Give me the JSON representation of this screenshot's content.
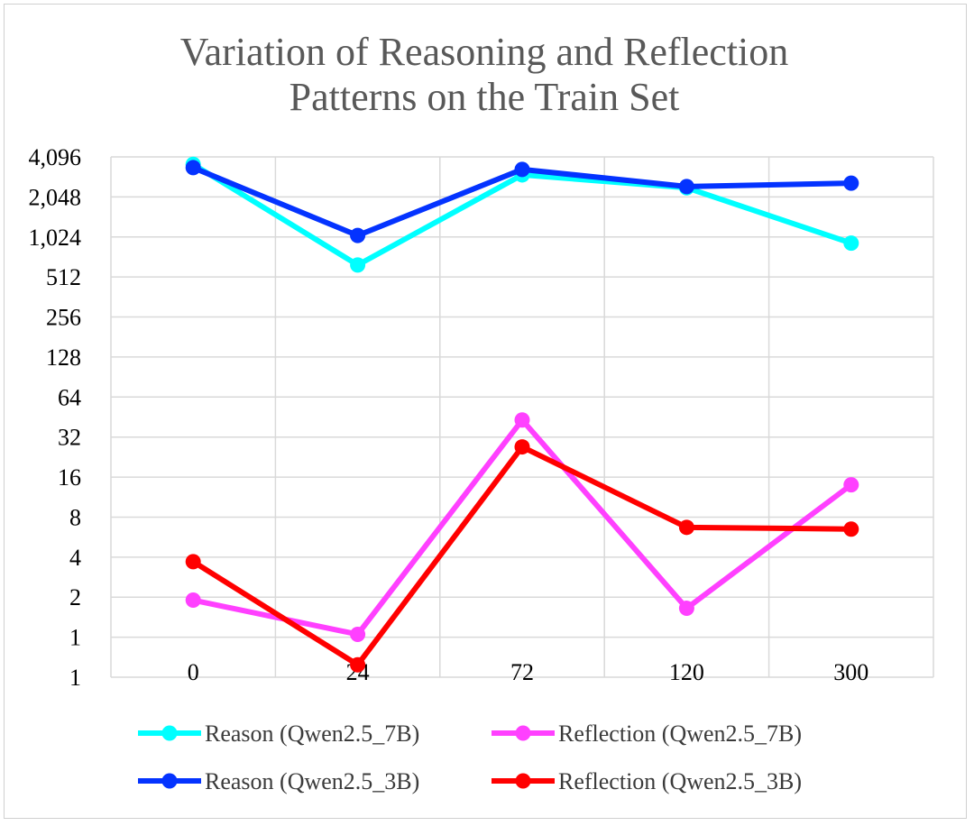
{
  "chart_data": {
    "type": "line",
    "title_lines": [
      "Variation of Reasoning and Reflection",
      "Patterns on the Train Set"
    ],
    "xlabel": "",
    "ylabel": "",
    "y_scale": "log2",
    "categories": [
      "0",
      "24",
      "72",
      "120",
      "300"
    ],
    "y_tick_labels": [
      "1",
      "1",
      "2",
      "4",
      "8",
      "16",
      "32",
      "64",
      "128",
      "256",
      "512",
      "1,024",
      "2,048",
      "4,096"
    ],
    "ylim": [
      0.5,
      4096
    ],
    "grid": true,
    "legend_position": "bottom",
    "series": [
      {
        "name": "Reason (Qwen2.5_7B)",
        "color": "#00FFFF",
        "values": [
          3600,
          630,
          3000,
          2400,
          920
        ]
      },
      {
        "name": "Reflection (Qwen2.5_7B)",
        "color": "#FF40FF",
        "values": [
          1.9,
          1.05,
          43,
          1.65,
          14
        ]
      },
      {
        "name": "Reason (Qwen2.5_3B)",
        "color": "#0433FF",
        "values": [
          3400,
          1050,
          3300,
          2450,
          2600
        ]
      },
      {
        "name": "Reflection (Qwen2.5_3B)",
        "color": "#FF0000",
        "values": [
          3.7,
          0.62,
          27,
          6.7,
          6.5
        ]
      }
    ]
  }
}
